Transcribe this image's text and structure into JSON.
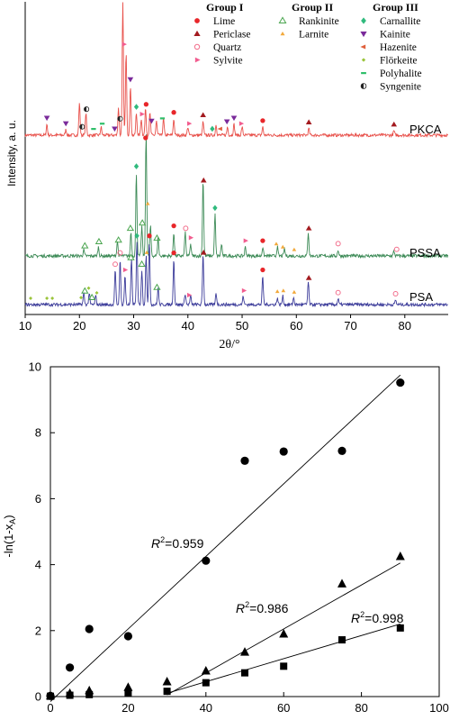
{
  "chart_data": [
    {
      "type": "line",
      "xlabel": "2θ/°",
      "ylabel": "Intensity, a. u.",
      "xlim": [
        10,
        88
      ],
      "xticks": [
        "10",
        "20",
        "30",
        "40",
        "50",
        "60",
        "70",
        "80"
      ],
      "grid": false,
      "legend_position": "top-right",
      "legend_groups": [
        {
          "title": "Group I",
          "entries": [
            {
              "name": "Lime",
              "marker": "filled-circle",
              "color": "#e8262a"
            },
            {
              "name": "Periclase",
              "marker": "filled-triangle",
              "color": "#a31a1f"
            },
            {
              "name": "Quartz",
              "marker": "open-circle",
              "color": "#f26d8b"
            },
            {
              "name": "Sylvite",
              "marker": "right-triangle",
              "color": "#f25d8f"
            }
          ]
        },
        {
          "title": "Group II",
          "entries": [
            {
              "name": "Rankinite",
              "marker": "open-triangle",
              "color": "#4aa54f"
            },
            {
              "name": "Larnite",
              "marker": "small-triangle",
              "color": "#f2a93b"
            }
          ]
        },
        {
          "title": "Group III",
          "entries": [
            {
              "name": "Carnallite",
              "marker": "diamond",
              "color": "#2fba7d"
            },
            {
              "name": "Kainite",
              "marker": "down-triangle",
              "color": "#7a2a9a"
            },
            {
              "name": "Hazenite",
              "marker": "left-triangle",
              "color": "#e0603c"
            },
            {
              "name": "Flörkeite",
              "marker": "small-diamond",
              "color": "#9ac43a"
            },
            {
              "name": "Polyhalite",
              "marker": "dash",
              "color": "#2fbf6a"
            },
            {
              "name": "Syngenite",
              "marker": "half-circle",
              "color": "#222222"
            }
          ]
        }
      ],
      "series": [
        {
          "name": "PKCA",
          "color": "#e8504a",
          "peaks": [
            [
              14,
              2
            ],
            [
              17.5,
              1
            ],
            [
              20,
              6
            ],
            [
              21.2,
              4
            ],
            [
              24,
              1.5
            ],
            [
              27.2,
              5
            ],
            [
              28,
              24
            ],
            [
              28.6,
              15
            ],
            [
              29.4,
              9
            ],
            [
              30.5,
              4
            ],
            [
              31.4,
              3
            ],
            [
              32.2,
              5
            ],
            [
              33,
              4
            ],
            [
              34.2,
              2.5
            ],
            [
              35.5,
              3
            ],
            [
              37.4,
              3
            ],
            [
              40,
              1.5
            ],
            [
              42.8,
              2.5
            ],
            [
              45.2,
              2
            ],
            [
              47.3,
              1.5
            ],
            [
              48.5,
              2
            ],
            [
              50,
              1.5
            ],
            [
              53.8,
              1.5
            ],
            [
              62.3,
              1.2
            ],
            [
              78,
              0.8
            ]
          ],
          "markers": [
            {
              "x": 14,
              "mineral": "Kainite"
            },
            {
              "x": 17.5,
              "mineral": "Kainite"
            },
            {
              "x": 20.5,
              "mineral": "Syngenite"
            },
            {
              "x": 21.3,
              "mineral": "Syngenite"
            },
            {
              "x": 22.6,
              "mineral": "Polyhalite"
            },
            {
              "x": 24.2,
              "mineral": "Polyhalite"
            },
            {
              "x": 26.5,
              "mineral": "Kainite"
            },
            {
              "x": 27.5,
              "mineral": "Syngenite"
            },
            {
              "x": 28.2,
              "mineral": "Sylvite"
            },
            {
              "x": 29.4,
              "mineral": "Kainite"
            },
            {
              "x": 30.5,
              "mineral": "Carnallite"
            },
            {
              "x": 31.5,
              "mineral": "Sylvite"
            },
            {
              "x": 32.3,
              "mineral": "Lime"
            },
            {
              "x": 33.3,
              "mineral": "Kainite"
            },
            {
              "x": 35.3,
              "mineral": "Polyhalite"
            },
            {
              "x": 37.4,
              "mineral": "Lime"
            },
            {
              "x": 40.2,
              "mineral": "Sylvite"
            },
            {
              "x": 42.8,
              "mineral": "Periclase"
            },
            {
              "x": 44.5,
              "mineral": "Carnallite"
            },
            {
              "x": 46,
              "mineral": "Hazenite"
            },
            {
              "x": 47.2,
              "mineral": "Kainite"
            },
            {
              "x": 48.5,
              "mineral": "Kainite"
            },
            {
              "x": 49.8,
              "mineral": "Sylvite"
            },
            {
              "x": 53.8,
              "mineral": "Lime"
            },
            {
              "x": 62.3,
              "mineral": "Periclase"
            },
            {
              "x": 78,
              "mineral": "Periclase"
            }
          ]
        },
        {
          "name": "PSSA",
          "color": "#3c8a56",
          "peaks": [
            [
              20.8,
              1
            ],
            [
              23.5,
              1.5
            ],
            [
              27,
              2.5
            ],
            [
              29.5,
              4
            ],
            [
              30.5,
              14
            ],
            [
              31.5,
              5
            ],
            [
              32.3,
              21
            ],
            [
              33.1,
              5
            ],
            [
              34.5,
              3
            ],
            [
              37.4,
              4
            ],
            [
              39.5,
              4
            ],
            [
              40.5,
              2
            ],
            [
              42.8,
              13
            ],
            [
              45,
              7
            ],
            [
              46.2,
              2
            ],
            [
              50.6,
              1.5
            ],
            [
              53.8,
              1.5
            ],
            [
              56.5,
              1.5
            ],
            [
              57.8,
              1.2
            ],
            [
              62.2,
              4
            ],
            [
              67.7,
              1
            ],
            [
              78,
              0.8
            ]
          ],
          "markers": [
            {
              "x": 21,
              "mineral": "Rankinite"
            },
            {
              "x": 23.6,
              "mineral": "Rankinite"
            },
            {
              "x": 27.2,
              "mineral": "Rankinite"
            },
            {
              "x": 29.4,
              "mineral": "Rankinite"
            },
            {
              "x": 30.5,
              "mineral": "Carnallite"
            },
            {
              "x": 31.6,
              "mineral": "Rankinite"
            },
            {
              "x": 32.2,
              "mineral": "Lime"
            },
            {
              "x": 32.6,
              "mineral": "Larnite"
            },
            {
              "x": 34.3,
              "mineral": "Rankinite"
            },
            {
              "x": 37.4,
              "mineral": "Lime"
            },
            {
              "x": 39.6,
              "mineral": "Quartz"
            },
            {
              "x": 40.5,
              "mineral": "Sylvite"
            },
            {
              "x": 42.9,
              "mineral": "Periclase"
            },
            {
              "x": 45,
              "mineral": "Carnallite"
            },
            {
              "x": 50.6,
              "mineral": "Sylvite"
            },
            {
              "x": 53.8,
              "mineral": "Lime"
            },
            {
              "x": 56.3,
              "mineral": "Larnite"
            },
            {
              "x": 57.5,
              "mineral": "Larnite"
            },
            {
              "x": 59.6,
              "mineral": "Larnite"
            },
            {
              "x": 62.3,
              "mineral": "Periclase"
            },
            {
              "x": 67.7,
              "mineral": "Quartz"
            },
            {
              "x": 78.5,
              "mineral": "Quartz"
            }
          ]
        },
        {
          "name": "PSA",
          "color": "#3c3c9a",
          "peaks": [
            [
              20.8,
              2
            ],
            [
              21.8,
              2
            ],
            [
              23,
              1.5
            ],
            [
              26.6,
              6
            ],
            [
              27.5,
              8
            ],
            [
              28.4,
              5
            ],
            [
              29.6,
              8
            ],
            [
              30.6,
              11
            ],
            [
              31.5,
              6
            ],
            [
              32.3,
              9
            ],
            [
              32.9,
              11
            ],
            [
              34.5,
              3
            ],
            [
              37.4,
              8
            ],
            [
              39.5,
              2
            ],
            [
              40.5,
              1.5
            ],
            [
              42.8,
              9
            ],
            [
              45.2,
              2
            ],
            [
              50.2,
              1.5
            ],
            [
              53.8,
              5
            ],
            [
              56.5,
              1.2
            ],
            [
              57.5,
              1.5
            ],
            [
              59.5,
              1.2
            ],
            [
              62.2,
              4
            ],
            [
              67.7,
              1
            ],
            [
              78.3,
              0.8
            ]
          ],
          "markers": [
            {
              "x": 11,
              "mineral": "Flörkeite"
            },
            {
              "x": 14,
              "mineral": "Flörkeite"
            },
            {
              "x": 15,
              "mineral": "Flörkeite"
            },
            {
              "x": 20.3,
              "mineral": "Flörkeite"
            },
            {
              "x": 21,
              "mineral": "Rankinite"
            },
            {
              "x": 21.7,
              "mineral": "Flörkeite"
            },
            {
              "x": 22.3,
              "mineral": "Rankinite"
            },
            {
              "x": 23.2,
              "mineral": "Flörkeite"
            },
            {
              "x": 26.6,
              "mineral": "Quartz"
            },
            {
              "x": 27.5,
              "mineral": "Quartz"
            },
            {
              "x": 28.4,
              "mineral": "Sylvite"
            },
            {
              "x": 29.5,
              "mineral": "Rankinite"
            },
            {
              "x": 30.6,
              "mineral": "Carnallite"
            },
            {
              "x": 31.5,
              "mineral": "Rankinite"
            },
            {
              "x": 32.4,
              "mineral": "Larnite"
            },
            {
              "x": 32.9,
              "mineral": "Lime"
            },
            {
              "x": 34.3,
              "mineral": "Rankinite"
            },
            {
              "x": 37.4,
              "mineral": "Lime"
            },
            {
              "x": 40.2,
              "mineral": "Sylvite"
            },
            {
              "x": 42.9,
              "mineral": "Periclase"
            },
            {
              "x": 50.3,
              "mineral": "Sylvite"
            },
            {
              "x": 53.8,
              "mineral": "Lime"
            },
            {
              "x": 56.5,
              "mineral": "Larnite"
            },
            {
              "x": 57.6,
              "mineral": "Larnite"
            },
            {
              "x": 59.6,
              "mineral": "Larnite"
            },
            {
              "x": 62.3,
              "mineral": "Periclase"
            },
            {
              "x": 67.7,
              "mineral": "Quartz"
            },
            {
              "x": 78.3,
              "mineral": "Quartz"
            }
          ]
        }
      ]
    },
    {
      "type": "scatter",
      "xlabel": "",
      "ylabel": "-ln(1-x",
      "ylabel_subscript": "A",
      "ylabel_close": ")",
      "xlim": [
        0,
        100
      ],
      "ylim": [
        0,
        10
      ],
      "xticks": [
        "0",
        "20",
        "40",
        "60",
        "80",
        "100"
      ],
      "yticks": [
        "0",
        "2",
        "4",
        "6",
        "8",
        "10"
      ],
      "grid": false,
      "series": [
        {
          "marker": "circle",
          "x": [
            0,
            5,
            10,
            20,
            40,
            50,
            60,
            75,
            90
          ],
          "y": [
            0.02,
            0.88,
            2.05,
            1.83,
            4.12,
            7.15,
            7.43,
            7.45,
            9.52
          ],
          "fit": {
            "x": [
              0,
              90
            ],
            "y": [
              -0.15,
              9.75
            ]
          },
          "r2_label": "R",
          "r2_sup": "2",
          "r2_value": "=0.959"
        },
        {
          "marker": "triangle",
          "x": [
            0,
            5,
            10,
            20,
            30,
            40,
            50,
            60,
            75,
            90
          ],
          "y": [
            0.02,
            0.1,
            0.18,
            0.28,
            0.45,
            0.78,
            1.35,
            1.9,
            3.42,
            4.25
          ],
          "fit": {
            "x": [
              30,
              90
            ],
            "y": [
              0.05,
              4.05
            ]
          },
          "r2_label": "R",
          "r2_sup": "2",
          "r2_value": "=0.986"
        },
        {
          "marker": "square",
          "x": [
            0,
            5,
            10,
            20,
            30,
            40,
            50,
            60,
            75,
            90
          ],
          "y": [
            0.01,
            0.04,
            0.06,
            0.12,
            0.16,
            0.42,
            0.72,
            0.92,
            1.72,
            2.08
          ],
          "fit": {
            "x": [
              30,
              90
            ],
            "y": [
              0.1,
              2.2
            ]
          },
          "r2_label": "R",
          "r2_sup": "2",
          "r2_value": "=0.998"
        }
      ]
    }
  ]
}
